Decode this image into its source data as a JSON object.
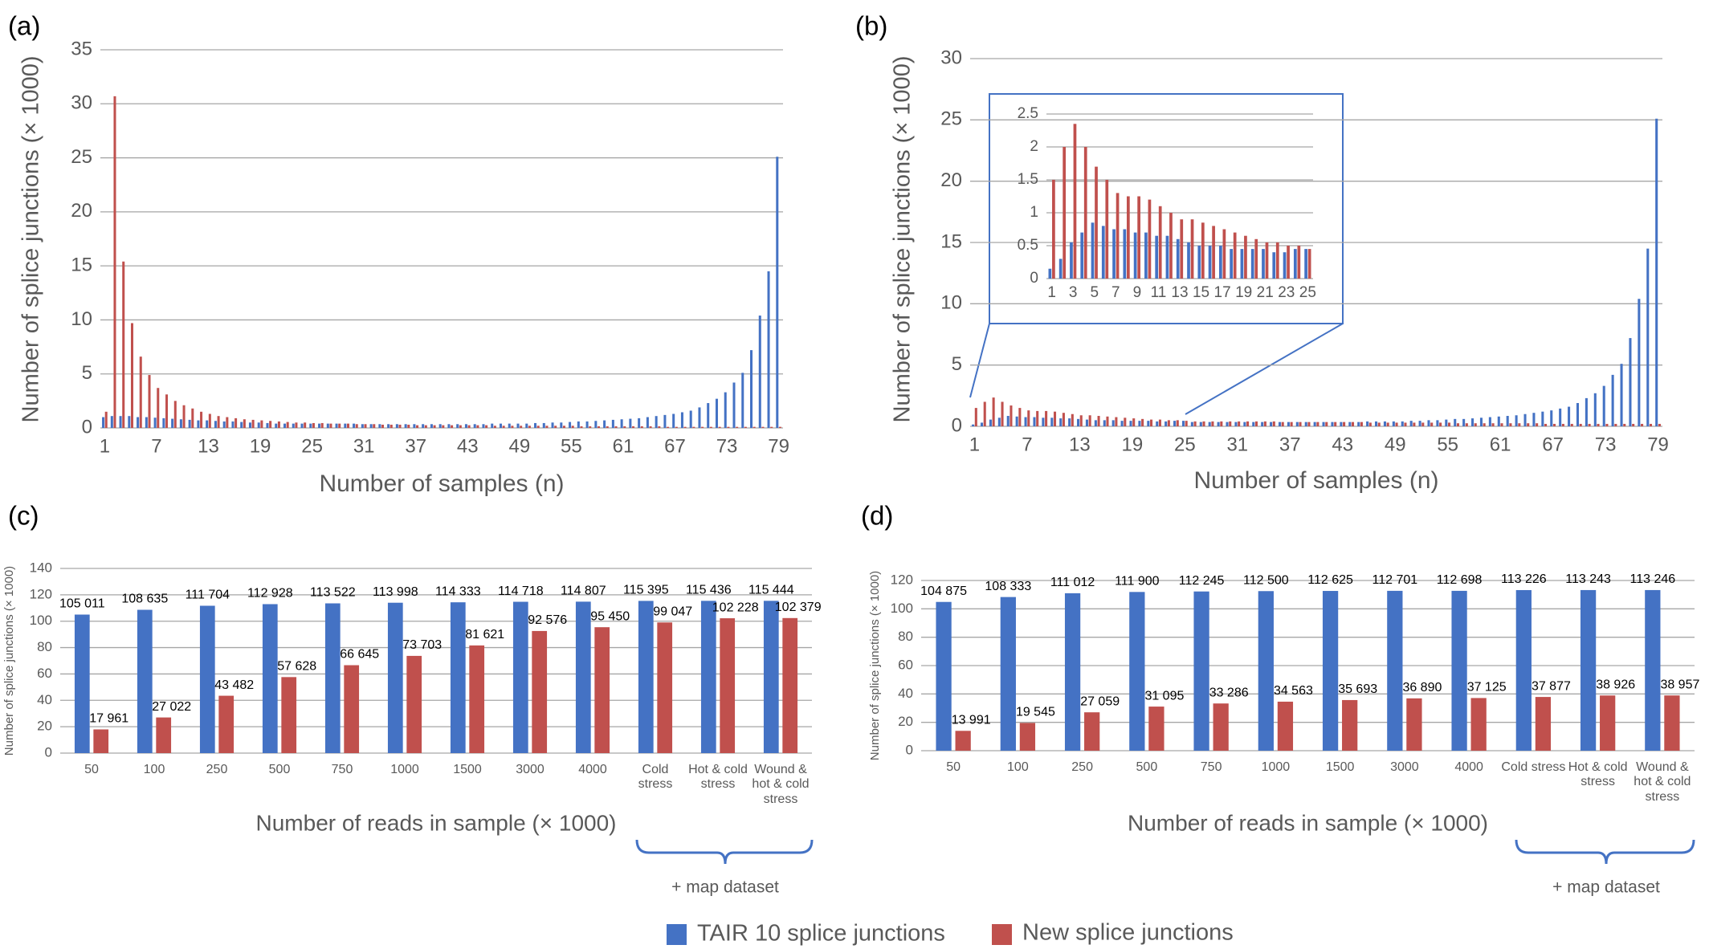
{
  "chart_data": [
    {
      "type": "bar",
      "panel_label": "(a)",
      "y_label": "Number of splice junctions (× 1000)",
      "x_label": "Number of samples (n)",
      "x": [
        1,
        2,
        3,
        4,
        5,
        6,
        7,
        8,
        9,
        10,
        11,
        12,
        13,
        14,
        15,
        16,
        17,
        18,
        19,
        20,
        21,
        22,
        23,
        24,
        25,
        26,
        27,
        28,
        29,
        30,
        31,
        32,
        33,
        34,
        35,
        36,
        37,
        38,
        39,
        40,
        41,
        42,
        43,
        44,
        45,
        46,
        47,
        48,
        49,
        50,
        51,
        52,
        53,
        54,
        55,
        56,
        57,
        58,
        59,
        60,
        61,
        62,
        63,
        64,
        65,
        66,
        67,
        68,
        69,
        70,
        71,
        72,
        73,
        74,
        75,
        76,
        77,
        78,
        79
      ],
      "xlim": [
        0.5,
        79.5
      ],
      "xticks": [
        1,
        7,
        13,
        19,
        25,
        31,
        37,
        43,
        49,
        55,
        61,
        67,
        73,
        79
      ],
      "ylim": [
        0,
        35
      ],
      "yticks": [
        0,
        5,
        10,
        15,
        20,
        25,
        30,
        35
      ],
      "grid": true,
      "series": [
        {
          "name": "TAIR 10 splice junctions",
          "color": "#4472c4",
          "values": [
            1.0,
            1.1,
            1.1,
            1.1,
            1.0,
            1.0,
            0.95,
            0.9,
            0.85,
            0.8,
            0.75,
            0.7,
            0.7,
            0.65,
            0.6,
            0.6,
            0.55,
            0.5,
            0.5,
            0.45,
            0.4,
            0.4,
            0.4,
            0.4,
            0.4,
            0.4,
            0.4,
            0.4,
            0.4,
            0.4,
            0.35,
            0.35,
            0.35,
            0.35,
            0.35,
            0.35,
            0.35,
            0.35,
            0.35,
            0.35,
            0.35,
            0.35,
            0.35,
            0.35,
            0.35,
            0.4,
            0.4,
            0.4,
            0.4,
            0.4,
            0.45,
            0.45,
            0.5,
            0.5,
            0.55,
            0.6,
            0.6,
            0.65,
            0.7,
            0.75,
            0.8,
            0.85,
            0.9,
            1.0,
            1.1,
            1.2,
            1.3,
            1.45,
            1.6,
            1.9,
            2.3,
            2.7,
            3.3,
            4.2,
            5.1,
            7.2,
            10.4,
            14.5,
            25.1
          ]
        },
        {
          "name": "New splice junctions",
          "color": "#c0504d",
          "values": [
            1.5,
            30.7,
            15.4,
            9.7,
            6.6,
            4.9,
            3.7,
            3.1,
            2.5,
            2.1,
            1.8,
            1.5,
            1.3,
            1.1,
            1.0,
            0.9,
            0.8,
            0.75,
            0.7,
            0.65,
            0.6,
            0.55,
            0.5,
            0.5,
            0.45,
            0.45,
            0.4,
            0.4,
            0.4,
            0.35,
            0.35,
            0.35,
            0.3,
            0.3,
            0.3,
            0.3,
            0.25,
            0.25,
            0.25,
            0.25,
            0.25,
            0.25,
            0.25,
            0.25,
            0.25,
            0.2,
            0.2,
            0.2,
            0.2,
            0.2,
            0.2,
            0.2,
            0.2,
            0.2,
            0.2,
            0.15,
            0.15,
            0.15,
            0.15,
            0.15,
            0.15,
            0.15,
            0.15,
            0.15,
            0.15,
            0.1,
            0.1,
            0.1,
            0.1,
            0.1,
            0.1,
            0.1,
            0.1,
            0.1,
            0.1,
            0.1,
            0.1,
            0.1,
            0.1
          ]
        }
      ]
    },
    {
      "type": "bar",
      "panel_label": "(b)",
      "y_label": "Number of splice junctions (× 1000)",
      "x_label": "Number of samples (n)",
      "x": [
        1,
        2,
        3,
        4,
        5,
        6,
        7,
        8,
        9,
        10,
        11,
        12,
        13,
        14,
        15,
        16,
        17,
        18,
        19,
        20,
        21,
        22,
        23,
        24,
        25,
        26,
        27,
        28,
        29,
        30,
        31,
        32,
        33,
        34,
        35,
        36,
        37,
        38,
        39,
        40,
        41,
        42,
        43,
        44,
        45,
        46,
        47,
        48,
        49,
        50,
        51,
        52,
        53,
        54,
        55,
        56,
        57,
        58,
        59,
        60,
        61,
        62,
        63,
        64,
        65,
        66,
        67,
        68,
        69,
        70,
        71,
        72,
        73,
        74,
        75,
        76,
        77,
        78,
        79
      ],
      "xlim": [
        0.5,
        79.5
      ],
      "xticks": [
        1,
        7,
        13,
        19,
        25,
        31,
        37,
        43,
        49,
        55,
        61,
        67,
        73,
        79
      ],
      "ylim": [
        0,
        30
      ],
      "yticks": [
        0,
        5,
        10,
        15,
        20,
        25,
        30
      ],
      "grid": true,
      "inset": {
        "xlim": [
          0.5,
          25.5
        ],
        "xticks": [
          1,
          3,
          5,
          7,
          9,
          11,
          13,
          15,
          17,
          19,
          21,
          23,
          25
        ],
        "ylim": [
          0,
          2.5
        ],
        "yticks": [
          0,
          0.5,
          1,
          1.5,
          2,
          2.5
        ]
      },
      "series": [
        {
          "color": "#4472c4",
          "values": [
            0.15,
            0.3,
            0.55,
            0.7,
            0.85,
            0.8,
            0.75,
            0.75,
            0.7,
            0.7,
            0.65,
            0.65,
            0.6,
            0.55,
            0.5,
            0.5,
            0.5,
            0.45,
            0.45,
            0.45,
            0.45,
            0.4,
            0.4,
            0.45,
            0.45,
            0.35,
            0.35,
            0.35,
            0.35,
            0.35,
            0.35,
            0.35,
            0.35,
            0.35,
            0.35,
            0.35,
            0.35,
            0.35,
            0.35,
            0.35,
            0.35,
            0.35,
            0.35,
            0.35,
            0.35,
            0.4,
            0.4,
            0.4,
            0.4,
            0.4,
            0.45,
            0.45,
            0.5,
            0.5,
            0.55,
            0.6,
            0.6,
            0.65,
            0.7,
            0.75,
            0.8,
            0.85,
            0.9,
            1.0,
            1.1,
            1.2,
            1.3,
            1.45,
            1.6,
            1.9,
            2.3,
            2.7,
            3.3,
            4.2,
            5.1,
            7.2,
            10.4,
            14.5,
            25.1
          ]
        },
        {
          "color": "#c0504d",
          "values": [
            1.5,
            2.0,
            2.35,
            2.0,
            1.7,
            1.5,
            1.3,
            1.25,
            1.25,
            1.2,
            1.1,
            1.0,
            0.9,
            0.9,
            0.85,
            0.8,
            0.75,
            0.7,
            0.65,
            0.6,
            0.55,
            0.55,
            0.5,
            0.5,
            0.45,
            0.4,
            0.4,
            0.4,
            0.4,
            0.4,
            0.4,
            0.4,
            0.4,
            0.4,
            0.4,
            0.35,
            0.35,
            0.35,
            0.35,
            0.35,
            0.35,
            0.35,
            0.35,
            0.35,
            0.35,
            0.3,
            0.3,
            0.3,
            0.3,
            0.3,
            0.3,
            0.3,
            0.3,
            0.3,
            0.3,
            0.25,
            0.25,
            0.25,
            0.25,
            0.25,
            0.25,
            0.25,
            0.25,
            0.25,
            0.25,
            0.2,
            0.2,
            0.2,
            0.2,
            0.2,
            0.2,
            0.2,
            0.2,
            0.2,
            0.2,
            0.2,
            0.2,
            0.2,
            0.2
          ]
        }
      ]
    },
    {
      "type": "bar",
      "panel_label": "(c)",
      "y_label": "Number of splice junctions (× 1000)",
      "x_label": "Number of reads in sample (× 1000)",
      "annotation": "+ map dataset",
      "categories": [
        "50",
        "100",
        "250",
        "500",
        "750",
        "1000",
        "1500",
        "3000",
        "4000",
        "Cold stress",
        "Hot & cold stress",
        "Wound & hot & cold stress"
      ],
      "ylim": [
        0,
        140
      ],
      "yticks": [
        0,
        20,
        40,
        60,
        80,
        100,
        120,
        140
      ],
      "grid": true,
      "series": [
        {
          "color": "#4472c4",
          "values": [
            105.011,
            108.635,
            111.704,
            112.928,
            113.522,
            113.998,
            114.333,
            114.718,
            114.807,
            115.395,
            115.436,
            115.444
          ],
          "value_labels": [
            "105 011",
            "108 635",
            "111 704",
            "112 928",
            "113 522",
            "113 998",
            "114 333",
            "114 718",
            "114 807",
            "115 395",
            "115 436",
            "115 444"
          ]
        },
        {
          "color": "#c0504d",
          "values": [
            17.961,
            27.022,
            43.482,
            57.628,
            66.645,
            73.703,
            81.621,
            92.576,
            95.45,
            99.047,
            102.228,
            102.379
          ],
          "value_labels": [
            "17 961",
            "27 022",
            "43 482",
            "57 628",
            "66 645",
            "73 703",
            "81 621",
            "92 576",
            "95 450",
            "99 047",
            "102 228",
            "102 379"
          ]
        }
      ]
    },
    {
      "type": "bar",
      "panel_label": "(d)",
      "y_label": "Number of splice junctions (× 1000)",
      "x_label": "Number of reads in sample (× 1000)",
      "annotation": "+ map dataset",
      "categories": [
        "50",
        "100",
        "250",
        "500",
        "750",
        "1000",
        "1500",
        "3000",
        "4000",
        "Cold stress",
        "Hot & cold stress",
        "Wound & hot & cold stress"
      ],
      "ylim": [
        0,
        120
      ],
      "yticks": [
        0,
        20,
        40,
        60,
        80,
        100,
        120
      ],
      "grid": true,
      "series": [
        {
          "color": "#4472c4",
          "values": [
            104.875,
            108.333,
            111.012,
            111.9,
            112.245,
            112.5,
            112.625,
            112.701,
            112.698,
            113.226,
            113.243,
            113.246
          ],
          "value_labels": [
            "104 875",
            "108 333",
            "111 012",
            "111 900",
            "112 245",
            "112 500",
            "112 625",
            "112 701",
            "112 698",
            "113 226",
            "113 243",
            "113 246"
          ]
        },
        {
          "color": "#c0504d",
          "values": [
            13.991,
            19.545,
            27.059,
            31.095,
            33.286,
            34.563,
            35.693,
            36.89,
            37.125,
            37.877,
            38.926,
            38.957
          ],
          "value_labels": [
            "13 991",
            "19 545",
            "27 059",
            "31 095",
            "33 286",
            "34 563",
            "35 693",
            "36 890",
            "37 125",
            "37 877",
            "38 926",
            "38 957"
          ]
        }
      ]
    }
  ]
}
